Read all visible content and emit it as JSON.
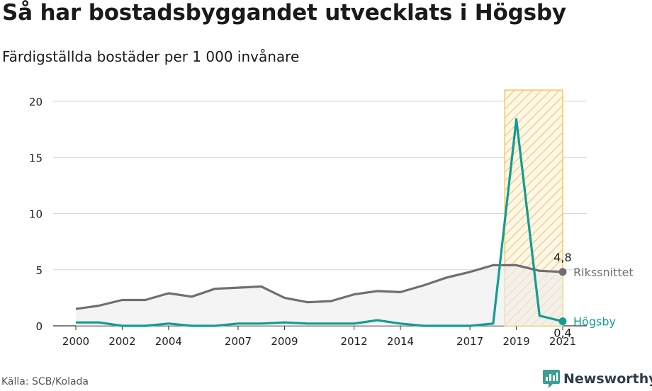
{
  "title": "Så har bostadsbyggandet utvecklats i Högsby",
  "subtitle": "Färdigställda bostäder per 1 000 invånare",
  "source": "Källa: SCB/Kolada",
  "brand": {
    "name": "Newsworthy",
    "icon": "newsworthy-logo-icon",
    "color": "#3d9e94"
  },
  "colors": {
    "riket": "#6f6e73",
    "hogsby": "#139c90",
    "highlight": "#f3c85a"
  },
  "chart_data": {
    "type": "line",
    "x": [
      2000,
      2001,
      2002,
      2003,
      2004,
      2005,
      2006,
      2007,
      2008,
      2009,
      2010,
      2011,
      2012,
      2013,
      2014,
      2015,
      2016,
      2017,
      2018,
      2019,
      2020,
      2021
    ],
    "x_tick_labels": [
      "2000",
      "2002",
      "2004",
      "2007",
      "2009",
      "2012",
      "2014",
      "2017",
      "2019",
      "2021"
    ],
    "x_tick_values": [
      2000,
      2002,
      2004,
      2007,
      2009,
      2012,
      2014,
      2017,
      2019,
      2021
    ],
    "ylim": [
      0,
      21
    ],
    "y_ticks": [
      0,
      5,
      10,
      15,
      20
    ],
    "highlight_range": [
      2018.5,
      2021
    ],
    "series": [
      {
        "name": "Rikssnittet",
        "end_label": "4,8",
        "values": [
          1.5,
          1.8,
          2.3,
          2.3,
          2.9,
          2.6,
          3.3,
          3.4,
          3.5,
          2.5,
          2.1,
          2.2,
          2.8,
          3.1,
          3.0,
          3.6,
          4.3,
          4.8,
          5.4,
          5.4,
          4.9,
          4.8
        ]
      },
      {
        "name": "Högsby",
        "end_label": "0,4",
        "values": [
          0.3,
          0.3,
          0.0,
          0.0,
          0.2,
          0.0,
          0.0,
          0.2,
          0.2,
          0.3,
          0.2,
          0.2,
          0.2,
          0.5,
          0.2,
          0.0,
          0.0,
          0.0,
          0.2,
          18.4,
          0.9,
          0.4
        ]
      }
    ]
  }
}
